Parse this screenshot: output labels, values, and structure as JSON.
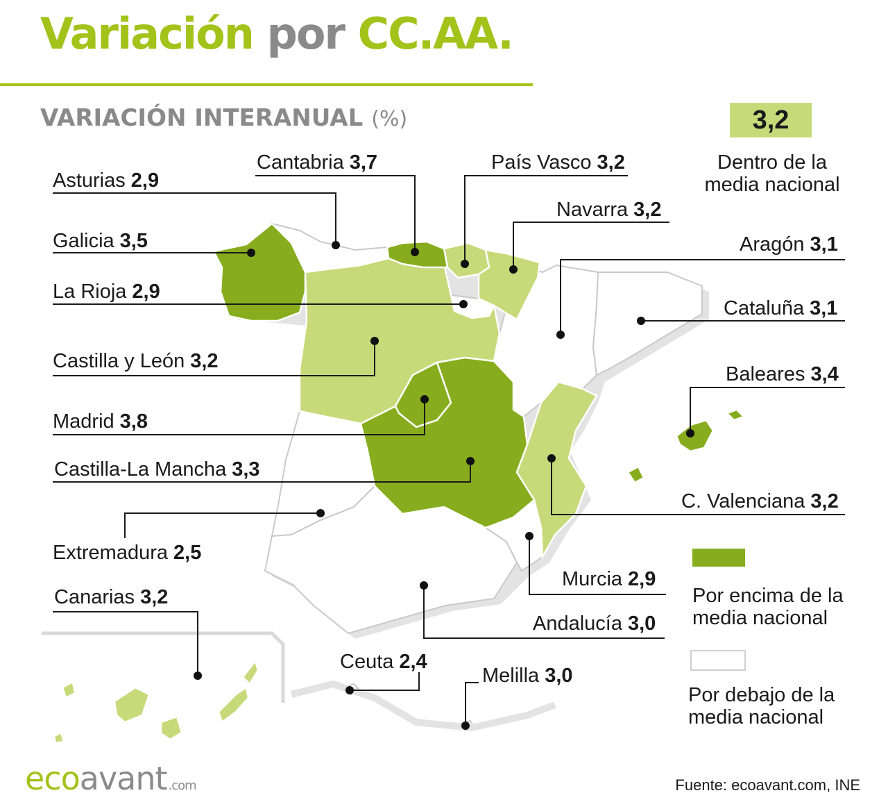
{
  "header": {
    "title_part1": "Variación",
    "title_part2": "por",
    "title_part3": "CC.AA.",
    "subtitle": "VARIACIÓN INTERANUAL",
    "subtitle_unit": "(%)"
  },
  "legend": {
    "national_value": "3,2",
    "within_label": "Dentro de la media nacional",
    "above_label": "Por encima de la media nacional",
    "below_label": "Por debajo de la media nacional"
  },
  "colors": {
    "above": "#87ad1e",
    "within": "#c8d97a",
    "below": "#ffffff",
    "accent": "#a3c21a",
    "grey": "#8a8a8a"
  },
  "regions": [
    {
      "name": "Asturias",
      "value": "2,9",
      "category": "below"
    },
    {
      "name": "Cantabria",
      "value": "3,7",
      "category": "above"
    },
    {
      "name": "País Vasco",
      "value": "3,2",
      "category": "within"
    },
    {
      "name": "Navarra",
      "value": "3,2",
      "category": "within"
    },
    {
      "name": "Galicia",
      "value": "3,5",
      "category": "above"
    },
    {
      "name": "Aragón",
      "value": "3,1",
      "category": "below"
    },
    {
      "name": "La Rioja",
      "value": "2,9",
      "category": "below"
    },
    {
      "name": "Cataluña",
      "value": "3,1",
      "category": "below"
    },
    {
      "name": "Castilla y León",
      "value": "3,2",
      "category": "within"
    },
    {
      "name": "Baleares",
      "value": "3,4",
      "category": "above"
    },
    {
      "name": "Madrid",
      "value": "3,8",
      "category": "above"
    },
    {
      "name": "Castilla-La Mancha",
      "value": "3,3",
      "category": "above"
    },
    {
      "name": "C. Valenciana",
      "value": "3,2",
      "category": "within"
    },
    {
      "name": "Extremadura",
      "value": "2,5",
      "category": "below"
    },
    {
      "name": "Murcia",
      "value": "2,9",
      "category": "below"
    },
    {
      "name": "Canarias",
      "value": "3,2",
      "category": "within"
    },
    {
      "name": "Andalucía",
      "value": "3,0",
      "category": "below"
    },
    {
      "name": "Ceuta",
      "value": "2,4",
      "category": "below"
    },
    {
      "name": "Melilla",
      "value": "3,0",
      "category": "below"
    }
  ],
  "footer": {
    "logo_eco": "eco",
    "logo_avant": "avant",
    "logo_com": ".com",
    "source": "Fuente: ecoavant.com, INE"
  }
}
